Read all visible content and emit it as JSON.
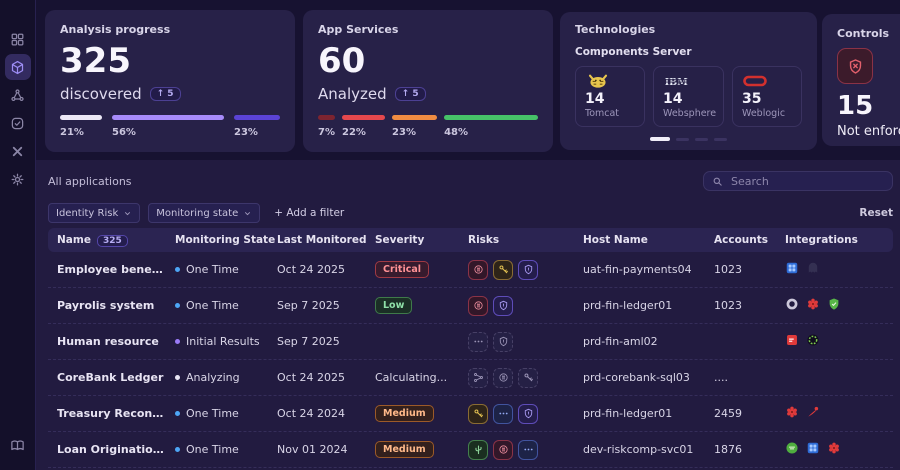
{
  "sidebar": {
    "items": [
      {
        "id": "dashboard",
        "icon": "grid-icon",
        "active": false
      },
      {
        "id": "applications",
        "icon": "cube-icon",
        "active": true
      },
      {
        "id": "topology",
        "icon": "cluster-icon",
        "active": false
      },
      {
        "id": "compliance",
        "icon": "check-square-icon",
        "active": false
      },
      {
        "id": "connections",
        "icon": "x-mark-icon",
        "active": false
      },
      {
        "id": "settings",
        "icon": "gear-icon",
        "active": false
      }
    ],
    "bottom_items": [
      {
        "id": "docs",
        "icon": "book-icon",
        "active": false
      }
    ]
  },
  "cards": {
    "analysis": {
      "title": "Analysis progress",
      "count": "325",
      "label": "discovered",
      "delta": "↑ 5",
      "bars": [
        {
          "label": "21%",
          "value": 21,
          "color": "#ece8f6"
        },
        {
          "label": "56%",
          "value": 56,
          "color": "#a78bfa"
        },
        {
          "label": "23%",
          "value": 23,
          "color": "#5b43d6"
        }
      ]
    },
    "app_services": {
      "title": "App Services",
      "count": "60",
      "label": "Analyzed",
      "delta": "↑ 5",
      "bars": [
        {
          "label": "7%",
          "value": 7,
          "color": "#7d2430"
        },
        {
          "label": "22%",
          "value": 22,
          "color": "#e5484d"
        },
        {
          "label": "23%",
          "value": 23,
          "color": "#f08c42"
        },
        {
          "label": "48%",
          "value": 48,
          "color": "#46c268"
        }
      ]
    },
    "technologies": {
      "title": "Technologies",
      "subtitle": "Components Server",
      "tiles": [
        {
          "icon": "tomcat-logo",
          "count": "14",
          "label": "Tomcat"
        },
        {
          "icon": "ibm-logo",
          "count": "14",
          "label": "Websphere"
        },
        {
          "icon": "weblogic-logo",
          "count": "35",
          "label": "Weblogic"
        }
      ],
      "pager": {
        "count": 4,
        "active_index": 0
      }
    },
    "controls": {
      "title": "Controls",
      "icon": "shield-x-icon",
      "count": "15",
      "label": "Not enforcing"
    }
  },
  "toolbar": {
    "section_title": "All applications",
    "search_placeholder": "Search",
    "filters": [
      "Identity Risk",
      "Monitoring state"
    ],
    "add_filter_label": "+ Add a filter",
    "reset_label": "Reset"
  },
  "table": {
    "columns": [
      "Name",
      "Monitoring State",
      "Last Monitored",
      "Severity",
      "Risks",
      "Host Name",
      "Accounts",
      "Integrations"
    ],
    "name_count_badge": "325",
    "rows": [
      {
        "name": "Employee benefits",
        "state": {
          "label": "One Time",
          "color": "#4da6f5"
        },
        "last_monitored": "Oct 24 2025",
        "severity": {
          "label": "Critical",
          "tone": "critical"
        },
        "risks": [
          {
            "icon": "mask-circle-icon",
            "tone": "red"
          },
          {
            "icon": "key-icon",
            "tone": "amber"
          },
          {
            "icon": "shield-icon",
            "tone": "purple"
          }
        ],
        "host": "uat-fin-payments04",
        "accounts": "1023",
        "integrations": [
          "int-blue-grid",
          "int-dim-ghost"
        ]
      },
      {
        "name": "Payrolis system",
        "state": {
          "label": "One Time",
          "color": "#4da6f5"
        },
        "last_monitored": "Sep 7 2025",
        "severity": {
          "label": "Low",
          "tone": "low"
        },
        "risks": [
          {
            "icon": "mask-circle-icon",
            "tone": "red"
          },
          {
            "icon": "shield-icon",
            "tone": "purple"
          }
        ],
        "host": "prd-fin-ledger01",
        "accounts": "1023",
        "integrations": [
          "int-gray-donut",
          "int-red-flower",
          "int-green-shield"
        ]
      },
      {
        "name": "Human resource",
        "state": {
          "label": "Initial Results",
          "color": "#9a7bf7"
        },
        "last_monitored": "Sep 7 2025",
        "severity": null,
        "risks": [
          {
            "icon": "dots-icon",
            "tone": "dim"
          },
          {
            "icon": "shield-icon",
            "tone": "dim"
          }
        ],
        "host": "prd-fin-aml02",
        "accounts": "",
        "integrations": [
          "int-red-square",
          "int-green-ring"
        ]
      },
      {
        "name": "CoreBank  Ledger",
        "state": {
          "label": "Analyzing",
          "color": "#e9e6f4"
        },
        "last_monitored": "Oct 24 2025",
        "severity": {
          "label": "Calculating...",
          "tone": "text"
        },
        "risks": [
          {
            "icon": "branch-icon",
            "tone": "dim"
          },
          {
            "icon": "mask-circle-icon",
            "tone": "dim"
          },
          {
            "icon": "key-icon",
            "tone": "dim"
          }
        ],
        "host": "prd-corebank-sql03",
        "accounts": "....",
        "integrations": []
      },
      {
        "name": "Treasury Reconciliation...",
        "state": {
          "label": "One Time",
          "color": "#4da6f5"
        },
        "last_monitored": "Oct 24 2024",
        "severity": {
          "label": "Medium",
          "tone": "medium"
        },
        "risks": [
          {
            "icon": "key-icon",
            "tone": "amber"
          },
          {
            "icon": "dots-icon",
            "tone": "blue"
          },
          {
            "icon": "shield-icon",
            "tone": "purple"
          }
        ],
        "host": "prd-fin-ledger01",
        "accounts": "2459",
        "integrations": [
          "int-red-flower",
          "int-red-comet"
        ]
      },
      {
        "name": "Loan Origination Suite",
        "state": {
          "label": "One Time",
          "color": "#4da6f5"
        },
        "last_monitored": "Nov 01 2024",
        "severity": {
          "label": "Medium",
          "tone": "medium"
        },
        "risks": [
          {
            "icon": "cactus-icon",
            "tone": "green"
          },
          {
            "icon": "mask-circle-icon",
            "tone": "red"
          },
          {
            "icon": "dots-icon",
            "tone": "blue"
          }
        ],
        "host": "dev-riskcomp-svc01",
        "accounts": "1876",
        "integrations": [
          "int-green-badge",
          "int-blue-grid",
          "int-red-flower"
        ]
      }
    ]
  }
}
